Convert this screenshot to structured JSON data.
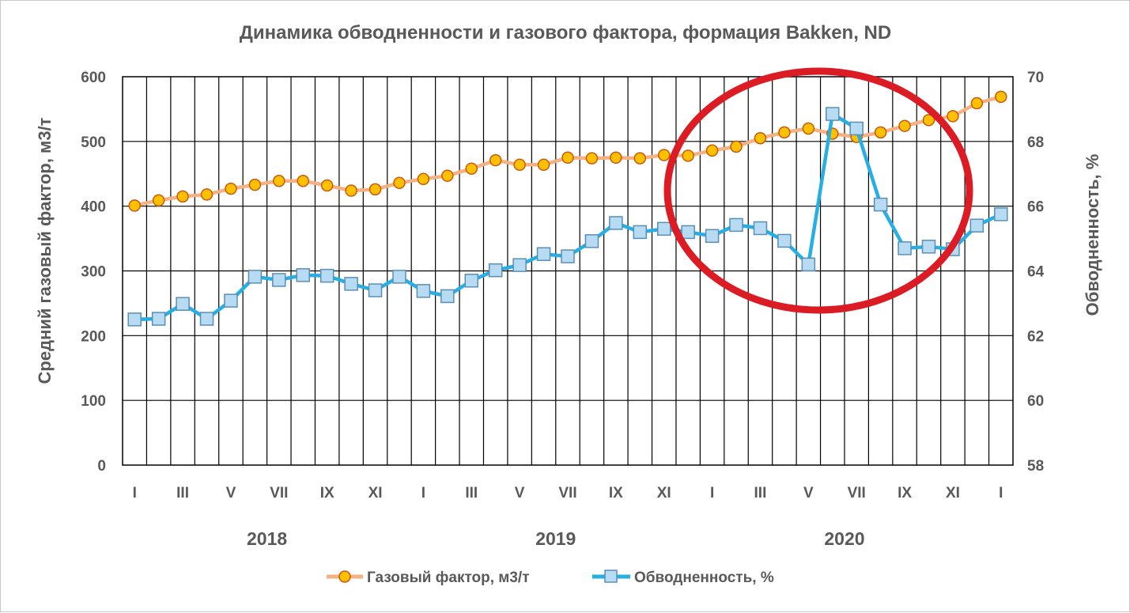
{
  "chart_data": {
    "type": "line",
    "title": "Динамика  обводненности  и газового  фактора,  формация  Bakken, ND",
    "ylabel_left": "Средний газовый фактор, м3/т",
    "ylabel_right": "Обводненность, %",
    "ylim_left": [
      0,
      600
    ],
    "ylim_right": [
      58,
      70
    ],
    "yticks_left": [
      "0",
      "100",
      "200",
      "300",
      "400",
      "500",
      "600"
    ],
    "yticks_right": [
      "58",
      "60",
      "62",
      "64",
      "66",
      "68",
      "70"
    ],
    "x_tick_labels": [
      "I",
      "III",
      "V",
      "VII",
      "IX",
      "XI",
      "I",
      "III",
      "V",
      "VII",
      "IX",
      "XI",
      "I",
      "III",
      "V",
      "VII",
      "IX",
      "XI",
      "I"
    ],
    "years": [
      "2018",
      "2019",
      "2020"
    ],
    "grid": true,
    "legend_position": "bottom",
    "colors": {
      "gas": "#f4b183",
      "gas_marker": "#ffc000",
      "gas_marker_edge": "#c55a11",
      "water": "#27aee3",
      "water_marker": "#b7dbf2",
      "water_marker_edge": "#5a8fb5",
      "highlight": "#dc1c24"
    },
    "series": [
      {
        "name": "Газовый фактор, м3/т",
        "axis": "left",
        "values": [
          401,
          409,
          415,
          418,
          427,
          433,
          439,
          439,
          432,
          424,
          426,
          436,
          442,
          447,
          458,
          471,
          464,
          464,
          475,
          474,
          475,
          474,
          479,
          478,
          486,
          492,
          505,
          514,
          520,
          512,
          507,
          514,
          524,
          533,
          539,
          559,
          569
        ]
      },
      {
        "name": "Обводненность, %",
        "axis": "right",
        "values": [
          62.5,
          62.52,
          62.98,
          62.52,
          63.08,
          63.82,
          63.72,
          63.87,
          63.85,
          63.6,
          63.4,
          63.82,
          63.38,
          63.22,
          63.7,
          64.02,
          64.18,
          64.52,
          64.45,
          64.92,
          65.48,
          65.2,
          65.3,
          65.2,
          65.08,
          65.42,
          65.32,
          64.93,
          64.2,
          68.85,
          68.4,
          66.05,
          64.7,
          64.75,
          64.67,
          65.4,
          65.75
        ]
      }
    ]
  }
}
